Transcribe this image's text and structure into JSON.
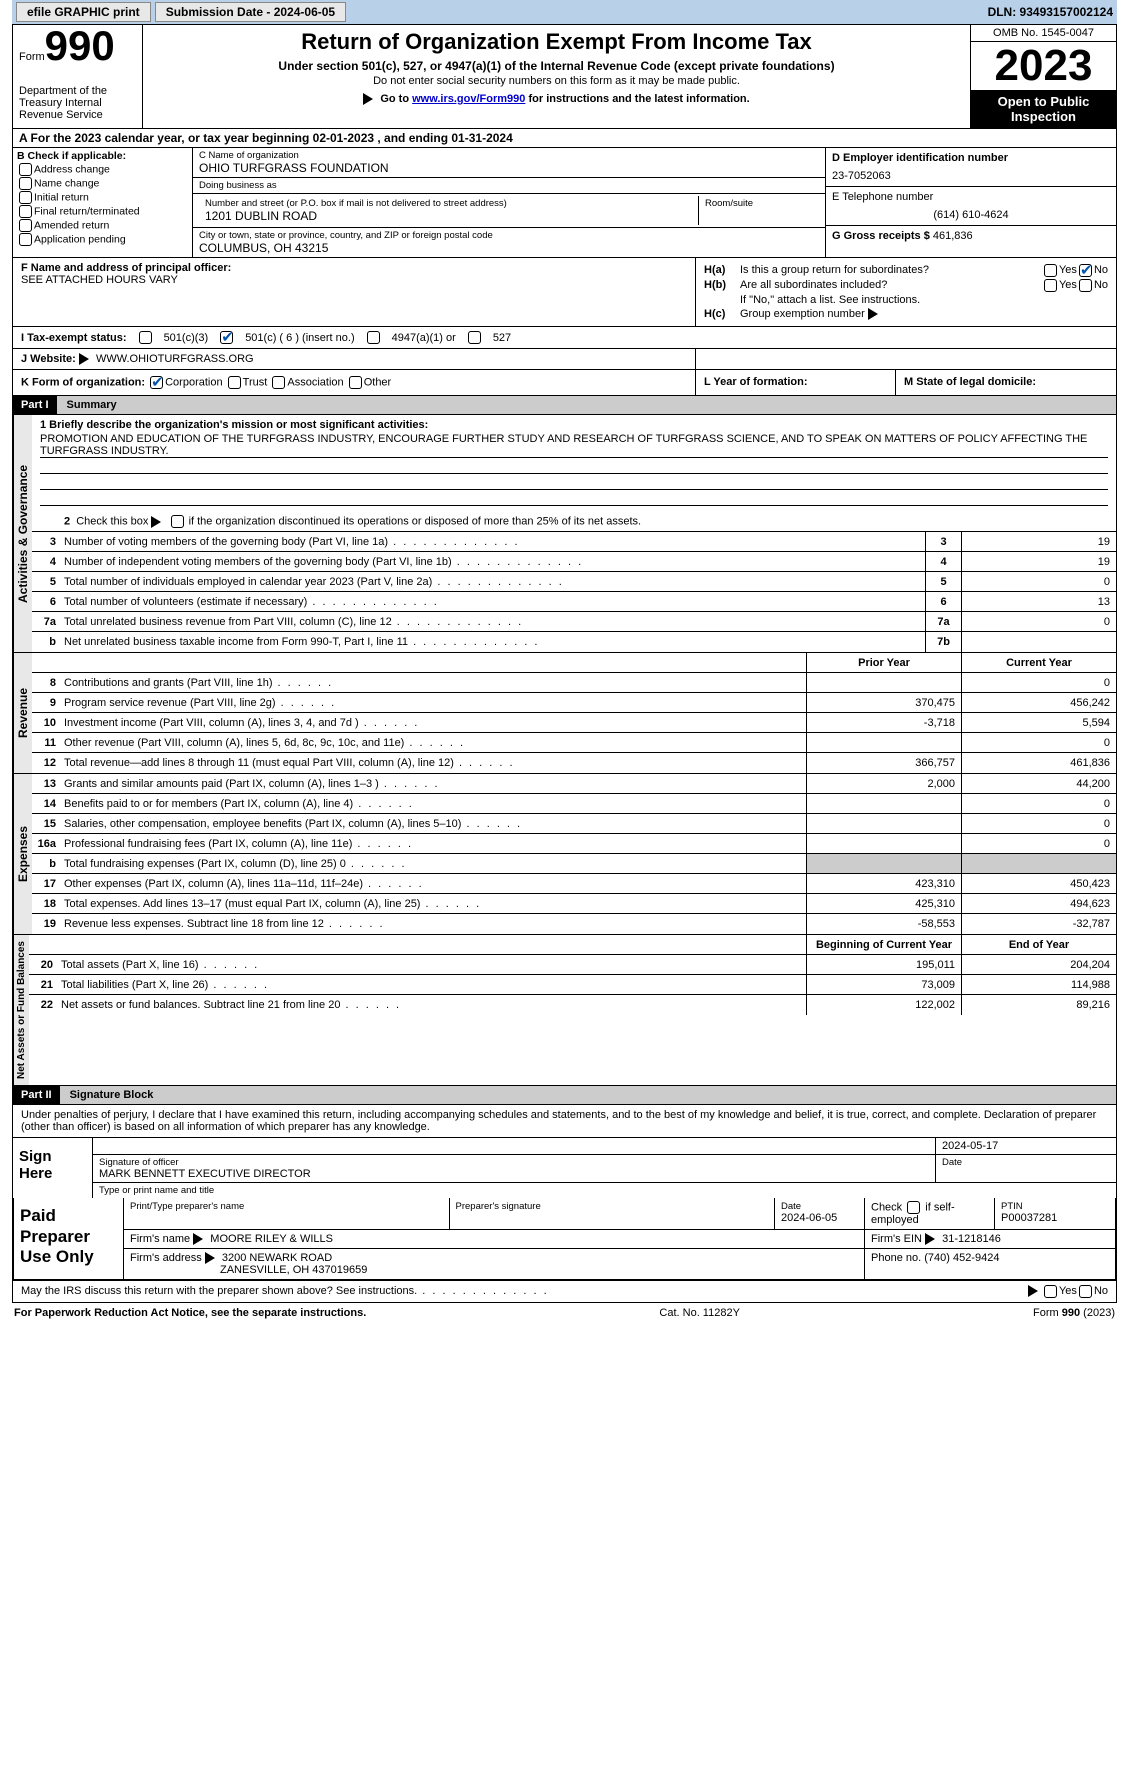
{
  "topbar": {
    "efile": "efile GRAPHIC print",
    "subdate_label": "Submission Date - 2024-06-05",
    "dln": "DLN: 93493157002124"
  },
  "header": {
    "form_word": "Form",
    "form_num": "990",
    "dept": "Department of the Treasury Internal Revenue Service",
    "title": "Return of Organization Exempt From Income Tax",
    "sub": "Under section 501(c), 527, or 4947(a)(1) of the Internal Revenue Code (except private foundations)",
    "sub2": "Do not enter social security numbers on this form as it may be made public.",
    "sub3_pre": "Go to ",
    "sub3_link": "www.irs.gov/Form990",
    "sub3_post": " for instructions and the latest information.",
    "omb": "OMB No. 1545-0047",
    "year": "2023",
    "insp": "Open to Public Inspection"
  },
  "rowA": "A  For the 2023 calendar year, or tax year beginning 02-01-2023   , and ending 01-31-2024",
  "B": {
    "label": "B Check if applicable:",
    "items": [
      "Address change",
      "Name change",
      "Initial return",
      "Final return/terminated",
      "Amended return",
      "Application pending"
    ]
  },
  "C": {
    "name_lbl": "C Name of organization",
    "name": "OHIO TURFGRASS FOUNDATION",
    "dba_lbl": "Doing business as",
    "dba": "",
    "street_lbl": "Number and street (or P.O. box if mail is not delivered to street address)",
    "street": "1201 DUBLIN ROAD",
    "room_lbl": "Room/suite",
    "room": "",
    "city_lbl": "City or town, state or province, country, and ZIP or foreign postal code",
    "city": "COLUMBUS, OH  43215"
  },
  "D": {
    "ein_lbl": "D Employer identification number",
    "ein": "23-7052063",
    "tel_lbl": "E Telephone number",
    "tel": "(614) 610-4624",
    "gross_lbl": "G Gross receipts $",
    "gross": "461,836"
  },
  "F": {
    "lbl": "F  Name and address of principal officer:",
    "val": "SEE ATTACHED HOURS VARY"
  },
  "H": {
    "a_lbl": "H(a)  Is this a group return for subordinates?",
    "b_lbl": "H(b)  Are all subordinates included?",
    "b_note": "If \"No,\" attach a list. See instructions.",
    "c_lbl": "H(c)  Group exemption number",
    "yes": "Yes",
    "no": "No"
  },
  "I": {
    "lbl": "I   Tax-exempt status:",
    "c3": "501(c)(3)",
    "c": "501(c) ( 6 ) (insert no.)",
    "a": "4947(a)(1) or",
    "s527": "527"
  },
  "J": {
    "lbl": "J   Website:",
    "val": "WWW.OHIOTURFGRASS.ORG"
  },
  "K": {
    "lbl": "K Form of organization:",
    "corp": "Corporation",
    "trust": "Trust",
    "assoc": "Association",
    "other": "Other",
    "l_lbl": "L Year of formation:",
    "m_lbl": "M State of legal domicile:"
  },
  "part1": {
    "hdr": "Part I",
    "title": "Summary",
    "q1_lbl": "1   Briefly describe the organization's mission or most significant activities:",
    "q1": "PROMOTION AND EDUCATION OF THE TURFGRASS INDUSTRY, ENCOURAGE FURTHER STUDY AND RESEARCH OF TURFGRASS SCIENCE, AND TO SPEAK ON MATTERS OF POLICY AFFECTING THE TURFGRASS INDUSTRY.",
    "q2": "2   Check this box        if the organization discontinued its operations or disposed of more than 25% of its net assets.",
    "tabs": {
      "ag": "Activities & Governance",
      "rev": "Revenue",
      "exp": "Expenses",
      "net": "Net Assets or Fund Balances"
    },
    "lines_ag": [
      {
        "n": "3",
        "d": "Number of voting members of the governing body (Part VI, line 1a)",
        "box": "3",
        "v": "19"
      },
      {
        "n": "4",
        "d": "Number of independent voting members of the governing body (Part VI, line 1b)",
        "box": "4",
        "v": "19"
      },
      {
        "n": "5",
        "d": "Total number of individuals employed in calendar year 2023 (Part V, line 2a)",
        "box": "5",
        "v": "0"
      },
      {
        "n": "6",
        "d": "Total number of volunteers (estimate if necessary)",
        "box": "6",
        "v": "13"
      },
      {
        "n": "7a",
        "d": "Total unrelated business revenue from Part VIII, column (C), line 12",
        "box": "7a",
        "v": "0"
      },
      {
        "n": "b",
        "d": "Net unrelated business taxable income from Form 990-T, Part I, line 11",
        "box": "7b",
        "v": ""
      }
    ],
    "col_prior": "Prior Year",
    "col_curr": "Current Year",
    "lines_rev": [
      {
        "n": "8",
        "d": "Contributions and grants (Part VIII, line 1h)",
        "p": "",
        "c": "0"
      },
      {
        "n": "9",
        "d": "Program service revenue (Part VIII, line 2g)",
        "p": "370,475",
        "c": "456,242"
      },
      {
        "n": "10",
        "d": "Investment income (Part VIII, column (A), lines 3, 4, and 7d )",
        "p": "-3,718",
        "c": "5,594"
      },
      {
        "n": "11",
        "d": "Other revenue (Part VIII, column (A), lines 5, 6d, 8c, 9c, 10c, and 11e)",
        "p": "",
        "c": "0"
      },
      {
        "n": "12",
        "d": "Total revenue—add lines 8 through 11 (must equal Part VIII, column (A), line 12)",
        "p": "366,757",
        "c": "461,836"
      }
    ],
    "lines_exp": [
      {
        "n": "13",
        "d": "Grants and similar amounts paid (Part IX, column (A), lines 1–3 )",
        "p": "2,000",
        "c": "44,200"
      },
      {
        "n": "14",
        "d": "Benefits paid to or for members (Part IX, column (A), line 4)",
        "p": "",
        "c": "0"
      },
      {
        "n": "15",
        "d": "Salaries, other compensation, employee benefits (Part IX, column (A), lines 5–10)",
        "p": "",
        "c": "0"
      },
      {
        "n": "16a",
        "d": "Professional fundraising fees (Part IX, column (A), line 11e)",
        "p": "",
        "c": "0"
      },
      {
        "n": "b",
        "d": "Total fundraising expenses (Part IX, column (D), line 25) 0",
        "p": "SHADE",
        "c": "SHADE"
      },
      {
        "n": "17",
        "d": "Other expenses (Part IX, column (A), lines 11a–11d, 11f–24e)",
        "p": "423,310",
        "c": "450,423"
      },
      {
        "n": "18",
        "d": "Total expenses. Add lines 13–17 (must equal Part IX, column (A), line 25)",
        "p": "425,310",
        "c": "494,623"
      },
      {
        "n": "19",
        "d": "Revenue less expenses. Subtract line 18 from line 12",
        "p": "-58,553",
        "c": "-32,787"
      }
    ],
    "col_beg": "Beginning of Current Year",
    "col_end": "End of Year",
    "lines_net": [
      {
        "n": "20",
        "d": "Total assets (Part X, line 16)",
        "p": "195,011",
        "c": "204,204"
      },
      {
        "n": "21",
        "d": "Total liabilities (Part X, line 26)",
        "p": "73,009",
        "c": "114,988"
      },
      {
        "n": "22",
        "d": "Net assets or fund balances. Subtract line 21 from line 20",
        "p": "122,002",
        "c": "89,216"
      }
    ]
  },
  "part2": {
    "hdr": "Part II",
    "title": "Signature Block",
    "decl": "Under penalties of perjury, I declare that I have examined this return, including accompanying schedules and statements, and to the best of my knowledge and belief, it is true, correct, and complete. Declaration of preparer (other than officer) is based on all information of which preparer has any knowledge.",
    "sign": "Sign Here",
    "sig_lbl": "Signature of officer",
    "date_lbl": "Date",
    "date": "2024-05-17",
    "officer": "MARK BENNETT  EXECUTIVE DIRECTOR",
    "type_lbl": "Type or print name and title",
    "paid": "Paid Preparer Use Only",
    "p_name_lbl": "Print/Type preparer's name",
    "p_sig_lbl": "Preparer's signature",
    "p_date_lbl": "Date",
    "p_date": "2024-06-05",
    "p_check": "Check        if self-employed",
    "p_ptin_lbl": "PTIN",
    "p_ptin": "P00037281",
    "firm_name_lbl": "Firm's name",
    "firm_name": "MOORE RILEY & WILLS",
    "firm_ein_lbl": "Firm's EIN",
    "firm_ein": "31-1218146",
    "firm_addr_lbl": "Firm's address",
    "firm_addr": "3200 NEWARK ROAD",
    "firm_addr2": "ZANESVILLE, OH  437019659",
    "phone_lbl": "Phone no.",
    "phone": "(740) 452-9424",
    "may": "May the IRS discuss this return with the preparer shown above? See instructions."
  },
  "footer": {
    "pra": "For Paperwork Reduction Act Notice, see the separate instructions.",
    "cat": "Cat. No. 11282Y",
    "form": "Form 990 (2023)"
  }
}
